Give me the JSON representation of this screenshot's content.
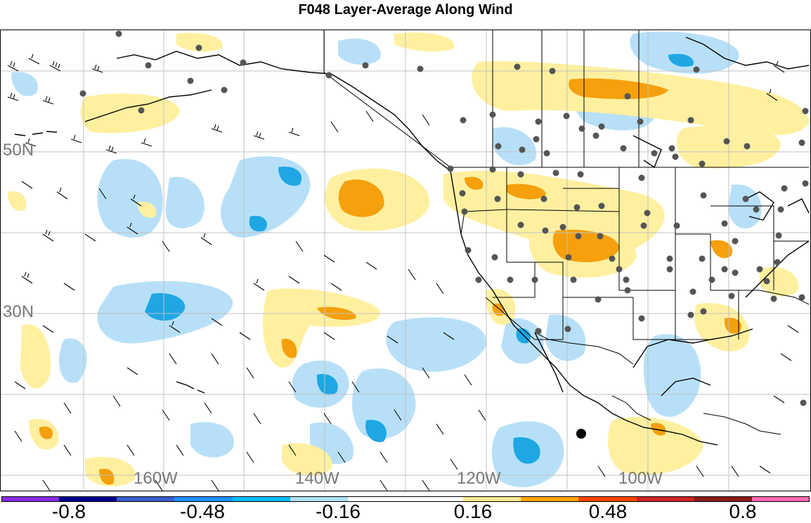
{
  "title": "F048 Layer-Average Along Wind",
  "lat_labels": [
    {
      "text": "50N"
    },
    {
      "text": "30N"
    }
  ],
  "lon_labels": [
    {
      "text": "160W"
    },
    {
      "text": "140W"
    },
    {
      "text": "120W"
    },
    {
      "text": "100W"
    }
  ],
  "colorbar": {
    "colors": [
      "#8a2be2",
      "#00008b",
      "#3a5fcd",
      "#1e90ff",
      "#00bfff",
      "#b0e2ff",
      "#ffffff",
      "#ffffff",
      "#ffe991",
      "#ffa500",
      "#ff4500",
      "#cd2626",
      "#8b1a1a",
      "#ff69b4"
    ],
    "tick_labels": [
      "-0.8",
      "-0.48",
      "-0.16",
      "0.16",
      "0.48",
      "0.8"
    ]
  },
  "legend_colors": {
    "light_blue": "#b7e0f8",
    "mid_blue": "#1ea7e4",
    "light_yellow": "#fff0a0",
    "orange": "#f5a00c",
    "station": "#555555"
  }
}
